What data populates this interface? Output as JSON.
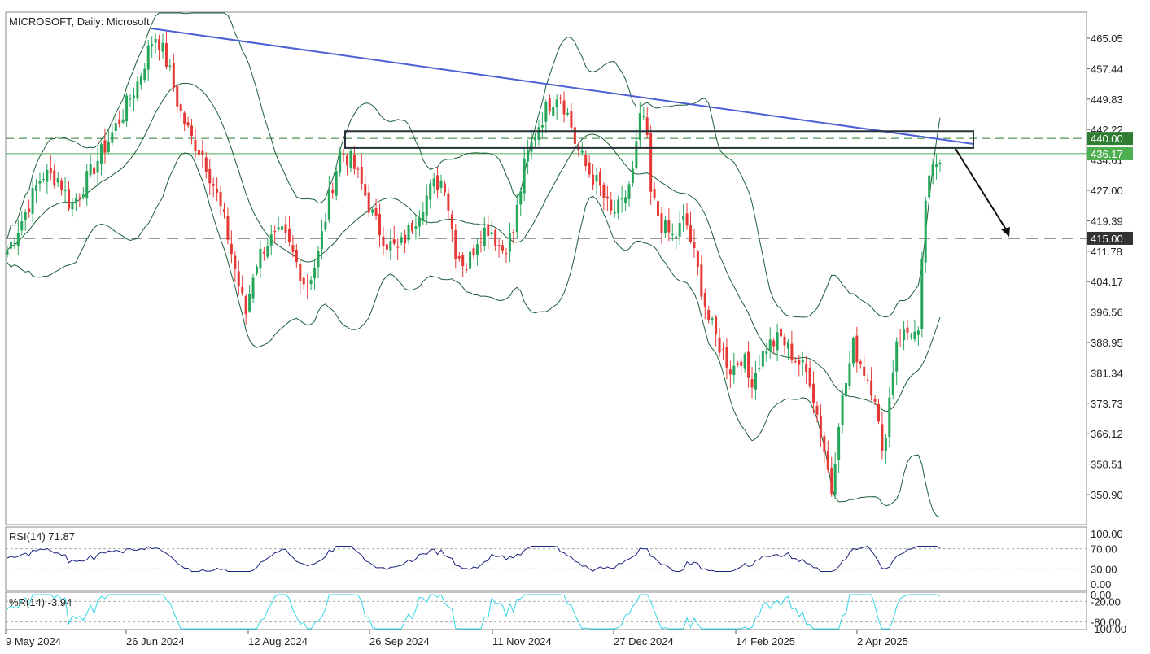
{
  "title": "MICROSOFT, Daily:  Microsoft",
  "indicators": {
    "rsi_label": "RSI(14) 71.87",
    "wr_label": "%R(14) -3.94"
  },
  "chart_data": {
    "type": "candlestick",
    "price_ticks": [
      "465.05",
      "457.44",
      "449.83",
      "442.22",
      "434.61",
      "427.00",
      "419.39",
      "411.78",
      "404.17",
      "396.56",
      "388.95",
      "381.34",
      "373.73",
      "366.12",
      "358.51",
      "350.90"
    ],
    "rsi_ticks": [
      "100.00",
      "70.00",
      "30.00",
      "0.00"
    ],
    "wr_ticks": [
      "0.00",
      "-20.00",
      "-80.00",
      "-100.00"
    ],
    "x_ticks": [
      "9 May 2024",
      "26 Jun 2024",
      "12 Aug 2024",
      "26 Sep 2024",
      "11 Nov 2024",
      "27 Dec 2024",
      "14 Feb 2025",
      "2 Apr 2025"
    ],
    "levels": [
      {
        "value": 440.0,
        "label": "440.00",
        "color": "#2e7d32"
      },
      {
        "value": 436.17,
        "label": "436.17",
        "color": "#4caf50"
      },
      {
        "value": 415.0,
        "label": "415.00",
        "color": "#333333"
      }
    ],
    "ylim": [
      345.0,
      471.0
    ],
    "rsi_last": 71.87,
    "wr_last": -3.94,
    "candle_colors": {
      "up": "#26a65b",
      "down": "#e53935"
    },
    "trendline_color": "#4c5fd5",
    "bollinger_color": "#1b5e36",
    "rsi_color": "#1a237e",
    "wr_color": "#33d6e6"
  }
}
